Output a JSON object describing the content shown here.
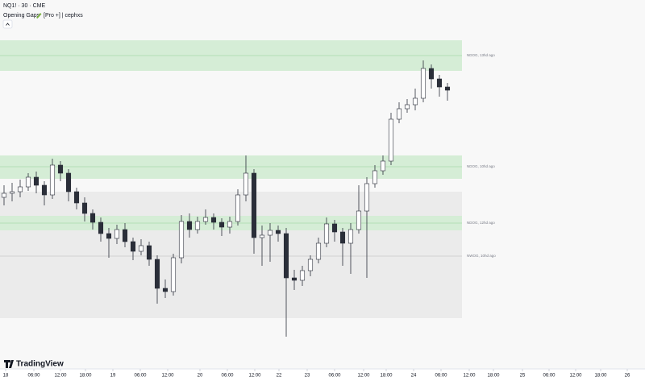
{
  "chart_data": {
    "type": "candlestick",
    "title": "NQ1! · 30 · CME",
    "indicator": "Opening Gaps",
    "indicator_settings": "[Pro +] | cephxs",
    "brand": "TradingView",
    "up_color": "#ffffff",
    "down_color": "#2a2e39",
    "outline_color": "#2a2e39",
    "xlim": [
      -1,
      159
    ],
    "ylim": [
      0,
      437
    ],
    "xticks": [
      {
        "value": 0.4,
        "label": "18"
      },
      {
        "value": 7.4,
        "label": "06:00"
      },
      {
        "value": 14,
        "label": "12:00"
      },
      {
        "value": 20.2,
        "label": "18:00"
      },
      {
        "value": 27,
        "label": "19"
      },
      {
        "value": 33.8,
        "label": "06:00"
      },
      {
        "value": 40.6,
        "label": "12:00"
      },
      {
        "value": 48.6,
        "label": "20"
      },
      {
        "value": 55.4,
        "label": "06:00"
      },
      {
        "value": 62.2,
        "label": "12:00"
      },
      {
        "value": 68.2,
        "label": "22"
      },
      {
        "value": 75.2,
        "label": "23"
      },
      {
        "value": 82,
        "label": "06:00"
      },
      {
        "value": 89.2,
        "label": "12:00"
      },
      {
        "value": 94.8,
        "label": "18:00"
      },
      {
        "value": 101.6,
        "label": "24"
      },
      {
        "value": 108.4,
        "label": "06:00"
      },
      {
        "value": 115.4,
        "label": "12:00"
      },
      {
        "value": 121.4,
        "label": "18:00"
      },
      {
        "value": 128.6,
        "label": "25"
      },
      {
        "value": 135.2,
        "label": "06:00"
      },
      {
        "value": 141.8,
        "label": "12:00"
      },
      {
        "value": 148,
        "label": "18:00"
      },
      {
        "value": 154.6,
        "label": "26"
      }
    ],
    "zones": [
      {
        "label": "NWOG, 10hd ago",
        "top": 217,
        "mid": 137,
        "bottom": 60,
        "color": "#ebebeb",
        "line_color": "#c8c8c8"
      },
      {
        "label": "NDOG, 13hd ago",
        "top": 405,
        "mid": 386,
        "bottom": 367,
        "color": "#d5edd6",
        "line_color": "#a9d8ab"
      },
      {
        "label": "NDOG, 10hd ago",
        "top": 262,
        "mid": 248,
        "bottom": 233,
        "color": "#d5edd6",
        "line_color": "#a9d8ab"
      },
      {
        "label": "NDOG, 12hd ago",
        "top": 187,
        "mid": 178,
        "bottom": 169,
        "color": "#d5edd6",
        "line_color": "#a9d8ab"
      }
    ],
    "x": [
      0,
      2,
      4,
      6,
      8,
      10,
      12,
      14,
      16,
      18,
      20,
      22,
      24,
      26,
      28,
      30,
      32,
      34,
      36,
      38,
      40,
      42,
      44,
      46,
      48,
      50,
      52,
      54,
      56,
      58,
      60,
      62,
      64,
      66,
      68,
      70,
      72,
      74,
      76,
      78,
      80,
      82,
      84,
      86,
      88,
      90,
      92,
      94,
      96,
      98,
      100,
      102,
      104,
      106,
      108,
      110
    ],
    "open": [
      210,
      215,
      217,
      223,
      235,
      225,
      213,
      250,
      240,
      217,
      203,
      190,
      179,
      165,
      159,
      170,
      155,
      143,
      150,
      133,
      97,
      93,
      135,
      180,
      170,
      180,
      185,
      179,
      173,
      180,
      213,
      240,
      160,
      163,
      169,
      165,
      110,
      107,
      119,
      133,
      153,
      177,
      167,
      153,
      170,
      193,
      227,
      243,
      255,
      307,
      320,
      325,
      333,
      370,
      357,
      347
    ],
    "high": [
      225,
      228,
      232,
      240,
      242,
      230,
      258,
      255,
      245,
      222,
      210,
      195,
      185,
      172,
      176,
      178,
      160,
      158,
      155,
      138,
      108,
      140,
      188,
      190,
      186,
      195,
      190,
      184,
      186,
      220,
      262,
      245,
      175,
      178,
      175,
      172,
      120,
      125,
      138,
      160,
      185,
      182,
      172,
      178,
      225,
      235,
      250,
      262,
      315,
      328,
      332,
      345,
      380,
      375,
      362,
      352
    ],
    "low": [
      200,
      205,
      210,
      218,
      215,
      200,
      208,
      230,
      205,
      195,
      180,
      170,
      155,
      135,
      152,
      148,
      132,
      138,
      125,
      78,
      85,
      88,
      128,
      160,
      165,
      176,
      170,
      162,
      165,
      175,
      205,
      140,
      125,
      130,
      155,
      37,
      95,
      100,
      112,
      128,
      148,
      155,
      125,
      115,
      165,
      110,
      222,
      238,
      250,
      302,
      315,
      318,
      328,
      345,
      335,
      330
    ],
    "close": [
      215,
      217,
      223,
      235,
      225,
      213,
      250,
      240,
      217,
      203,
      190,
      179,
      165,
      159,
      170,
      155,
      143,
      150,
      133,
      97,
      93,
      135,
      180,
      170,
      180,
      185,
      179,
      173,
      180,
      213,
      240,
      160,
      163,
      169,
      165,
      110,
      107,
      119,
      133,
      153,
      177,
      167,
      153,
      170,
      193,
      227,
      243,
      255,
      307,
      320,
      325,
      333,
      370,
      357,
      347,
      343
    ]
  }
}
